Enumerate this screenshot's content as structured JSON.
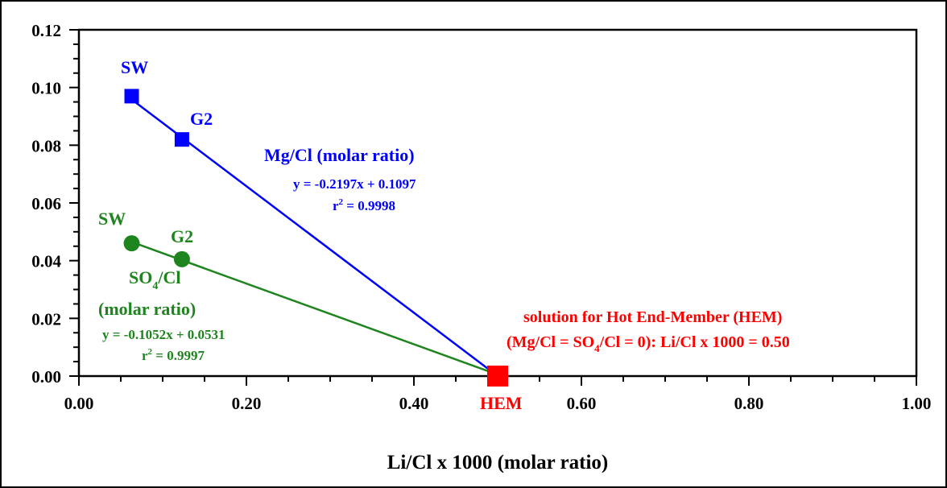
{
  "chart_data": {
    "type": "scatter",
    "title": "",
    "xlabel": "Li/Cl x 1000 (molar ratio)",
    "ylabel": "",
    "xlim": [
      0,
      1.0
    ],
    "ylim": [
      0,
      0.12
    ],
    "x_ticks": [
      "0.00",
      "0.20",
      "0.40",
      "0.60",
      "0.80",
      "1.00"
    ],
    "y_ticks": [
      "0.00",
      "0.02",
      "0.04",
      "0.06",
      "0.08",
      "0.10",
      "0.12"
    ],
    "grid": false,
    "legend": "none",
    "series": [
      {
        "name": "Mg/Cl (molar ratio)",
        "color": "#0000ff",
        "marker": "square",
        "points": [
          {
            "label": "SW",
            "x": 0.063,
            "y": 0.097
          },
          {
            "label": "G2",
            "x": 0.123,
            "y": 0.082
          }
        ],
        "fit": {
          "x0": 0.063,
          "x1": 0.5
        },
        "equation": "y = -0.2197x + 0.1097",
        "r2_prefix": "r",
        "r2_exp": "2",
        "r2_value": " = 0.9998"
      },
      {
        "color": "#1e841e",
        "marker": "circle",
        "name_main": "SO",
        "name_sub": "4",
        "name_rest": "/Cl",
        "name_line2": "(molar ratio)",
        "points": [
          {
            "label": "SW",
            "x": 0.063,
            "y": 0.046
          },
          {
            "label": "G2",
            "x": 0.123,
            "y": 0.0405
          }
        ],
        "fit": {
          "x0": 0.063,
          "x1": 0.5
        },
        "equation": "y = -0.1052x + 0.0531",
        "r2_prefix": "r",
        "r2_exp": "2",
        "r2_value": " = 0.9997"
      }
    ],
    "hem": {
      "label": "HEM",
      "x": 0.5,
      "y": 0.0,
      "color": "#ff0000",
      "note_line1": "solution for Hot End-Member (HEM)",
      "note_line2_a": "(Mg/Cl = SO",
      "note_line2_sub": "4",
      "note_line2_b": "/Cl = 0): Li/Cl x 1000 = 0.50"
    }
  }
}
